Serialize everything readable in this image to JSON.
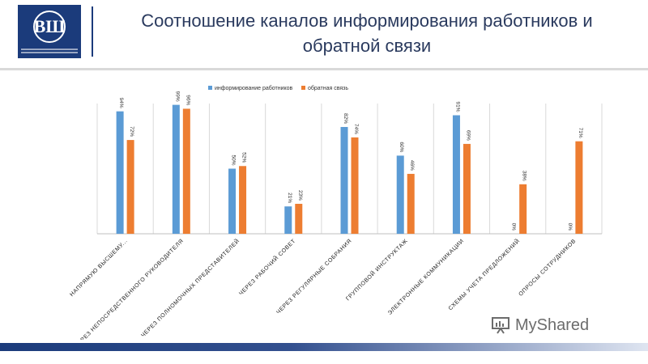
{
  "header": {
    "title_line1": "Соотношение каналов информирования работников и",
    "title_line2": "обратной связи",
    "logo_text": "ВШ",
    "brand_color": "#1b3b7b"
  },
  "watermark": {
    "text": "MyShared",
    "icon": "presentation-board-icon"
  },
  "chart_data": {
    "type": "bar",
    "categories": [
      "напрямую высшему...",
      "через непосредственного руководителя",
      "через полномочных представителей",
      "через рабочий совет",
      "через регулярные собрания",
      "групповой инструктаж",
      "электронные коммуникации",
      "схемы учета предложений",
      "опросы сотрудников"
    ],
    "series": [
      {
        "name": "информирование работников",
        "color": "#5b9bd5",
        "values": [
          94,
          99,
          50,
          21,
          82,
          60,
          91,
          0,
          0
        ],
        "labels": [
          "94%",
          "99%",
          "50%",
          "21%",
          "82%",
          "60%",
          "91%",
          "0%",
          "0%"
        ]
      },
      {
        "name": "обратная связь",
        "color": "#ed7d31",
        "values": [
          72,
          96,
          52,
          23,
          74,
          46,
          69,
          38,
          71
        ],
        "labels": [
          "72%",
          "96%",
          "52%",
          "23%",
          "74%",
          "46%",
          "69%",
          "38%",
          "71%"
        ]
      }
    ],
    "ylim": [
      0,
      100
    ],
    "grid": true,
    "legend_position": "top-center"
  }
}
